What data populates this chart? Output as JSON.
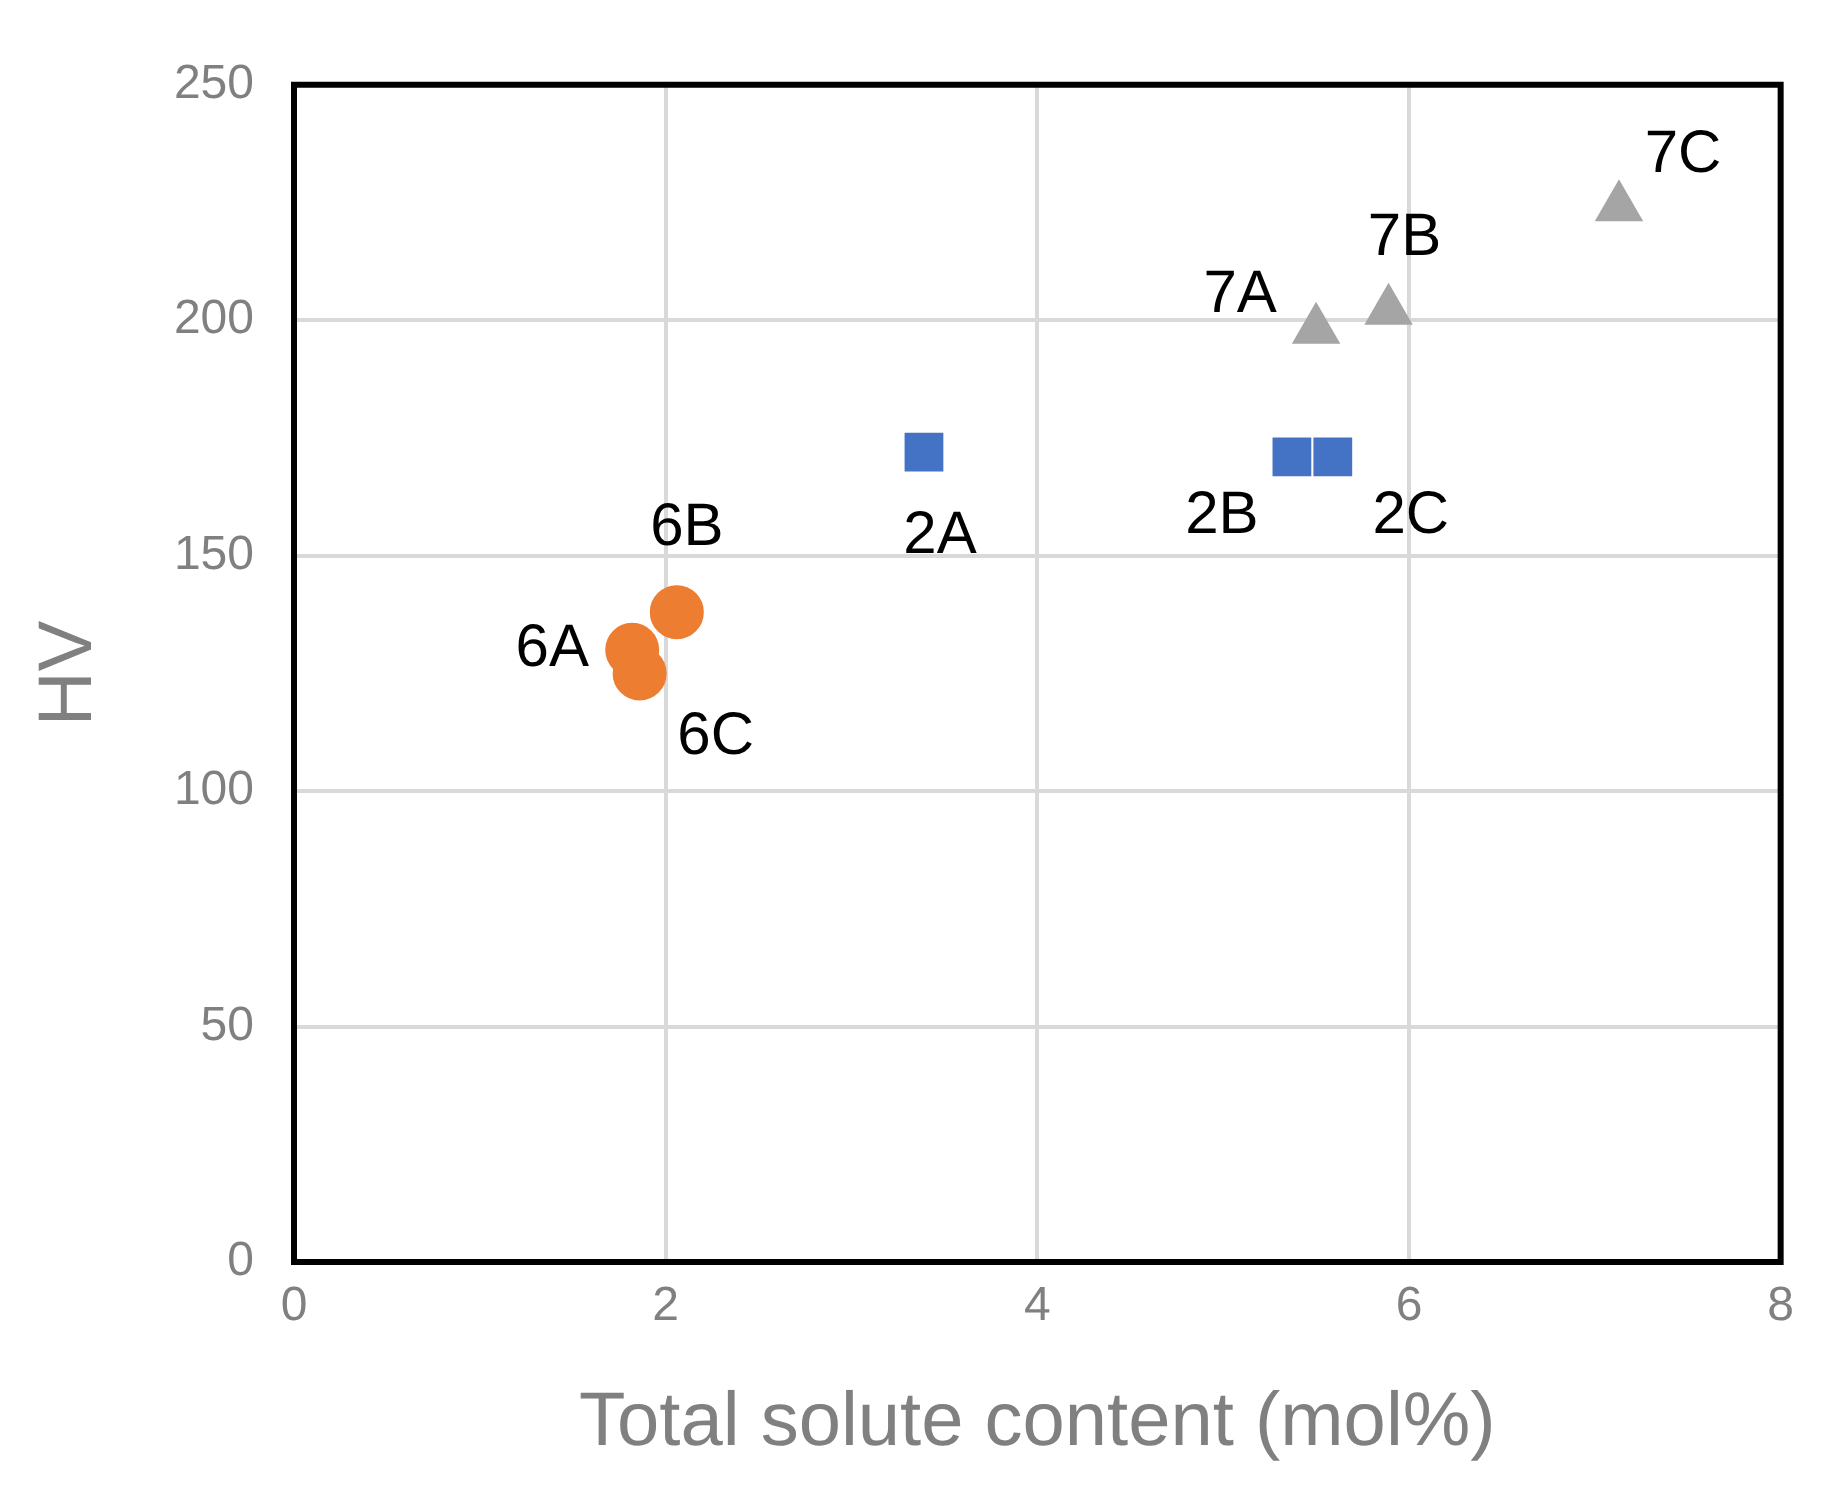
{
  "chart_data": {
    "type": "scatter",
    "xlabel": "Total solute content (mol%)",
    "ylabel": "HV",
    "xlim": [
      0,
      8
    ],
    "xticks": [
      0,
      2,
      4,
      6,
      8
    ],
    "ylim": [
      0,
      250
    ],
    "yticks": [
      0,
      50,
      100,
      150,
      200,
      250
    ],
    "grid": true,
    "series": [
      {
        "color": "#ed7d31",
        "marker": "circle",
        "x": [
          1.82,
          2.06,
          1.86
        ],
        "values": [
          130,
          138,
          125
        ]
      },
      {
        "color": "#4472c4",
        "marker": "square",
        "x": [
          3.39,
          5.37,
          5.59
        ],
        "values": [
          172,
          171,
          171
        ]
      },
      {
        "color": "#a5a5a5",
        "marker": "triangle",
        "x": [
          5.5,
          5.89,
          7.13
        ],
        "values": [
          198,
          202,
          224
        ]
      }
    ],
    "annotations": [
      {
        "text": "6A",
        "x": 1.82,
        "y": 130
      },
      {
        "text": "6B",
        "x": 2.06,
        "y": 138
      },
      {
        "text": "6C",
        "x": 1.86,
        "y": 125
      },
      {
        "text": "2A",
        "x": 3.39,
        "y": 172
      },
      {
        "text": "2B",
        "x": 5.37,
        "y": 171
      },
      {
        "text": "2C",
        "x": 5.59,
        "y": 171
      },
      {
        "text": "7A",
        "x": 5.5,
        "y": 198
      },
      {
        "text": "7B",
        "x": 5.89,
        "y": 202
      },
      {
        "text": "7C",
        "x": 7.13,
        "y": 224
      }
    ]
  }
}
